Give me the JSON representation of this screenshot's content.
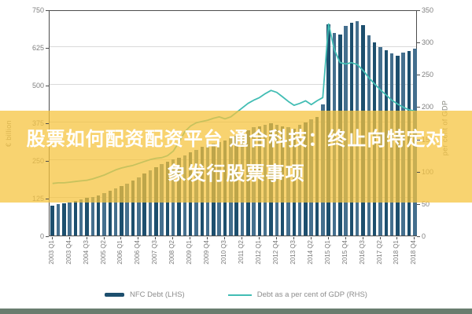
{
  "overlay": {
    "line1": "股票如何配资配资平台 通合科技：终止向特定对",
    "line2": "象发行股票事项",
    "band_color": "rgba(246,196,62,0.74)",
    "text_color": "#ffffff"
  },
  "footer_strip": {
    "color": "#6a7d6f"
  },
  "chart_data": {
    "type": "bar",
    "subtype": "bar+line combo, dual axis",
    "categories": [
      "2003 Q1",
      "2003 Q2",
      "2003 Q3",
      "2003 Q4",
      "2004 Q1",
      "2004 Q2",
      "2004 Q3",
      "2004 Q4",
      "2005 Q1",
      "2005 Q2",
      "2005 Q3",
      "2005 Q4",
      "2006 Q1",
      "2006 Q2",
      "2006 Q3",
      "2006 Q4",
      "2007 Q1",
      "2007 Q2",
      "2007 Q3",
      "2007 Q4",
      "2008 Q1",
      "2008 Q2",
      "2008 Q3",
      "2008 Q4",
      "2009 Q1",
      "2009 Q2",
      "2009 Q3",
      "2009 Q4",
      "2010 Q1",
      "2010 Q2",
      "2010 Q3",
      "2010 Q4",
      "2011 Q1",
      "2011 Q2",
      "2011 Q3",
      "2011 Q4",
      "2012 Q1",
      "2012 Q2",
      "2012 Q3",
      "2012 Q4",
      "2013 Q1",
      "2013 Q2",
      "2013 Q3",
      "2013 Q4",
      "2014 Q1",
      "2014 Q2",
      "2014 Q3",
      "2014 Q4",
      "2015 Q1",
      "2015 Q2",
      "2015 Q3",
      "2015 Q4",
      "2016 Q1",
      "2016 Q2",
      "2016 Q3",
      "2016 Q4",
      "2017 Q1",
      "2017 Q2",
      "2017 Q3",
      "2017 Q4",
      "2018 Q1",
      "2018 Q2",
      "2018 Q3",
      "2018 Q4"
    ],
    "x_tick_labels": [
      "2003 Q1",
      "2003 Q4",
      "2004 Q3",
      "2005 Q2",
      "2006 Q1",
      "2006 Q4",
      "2007 Q3",
      "2008 Q2",
      "2009 Q1",
      "2009 Q4",
      "2010 Q3",
      "2011 Q2",
      "2012 Q1",
      "2012 Q4",
      "2013 Q3",
      "2014 Q2",
      "2015 Q1",
      "2015 Q4",
      "2016 Q3",
      "2017 Q2",
      "2018 Q1",
      "2018 Q4"
    ],
    "x_tick_step": 3,
    "series": [
      {
        "name": "NFC Debt (LHS)",
        "render": "bar",
        "axis": "left",
        "color": "#1d4f6e",
        "color_alt": "#446f8e",
        "values": [
          100,
          103,
          106,
          110,
          114,
          119,
          124,
          129,
          134,
          141,
          148,
          156,
          164,
          173,
          183,
          194,
          205,
          216,
          227,
          237,
          245,
          252,
          259,
          266,
          275,
          285,
          294,
          302,
          306,
          310,
          316,
          323,
          332,
          341,
          350,
          359,
          361,
          367,
          372,
          368,
          362,
          359,
          354,
          367,
          374,
          385,
          393,
          435,
          700,
          672,
          666,
          695,
          705,
          710,
          698,
          665,
          640,
          625,
          615,
          605,
          596,
          607,
          613,
          620
        ]
      },
      {
        "name": "Debt as a per cent of GDP (RHS)",
        "render": "line",
        "axis": "right",
        "color": "#42bdb4",
        "values": [
          83,
          84,
          84,
          85,
          86,
          87,
          88,
          90,
          93,
          96,
          100,
          104,
          107,
          109,
          111,
          114,
          117,
          120,
          122,
          123,
          126,
          133,
          147,
          163,
          172,
          177,
          179,
          181,
          184,
          186,
          183,
          186,
          193,
          200,
          207,
          212,
          216,
          222,
          227,
          224,
          217,
          210,
          204,
          207,
          211,
          205,
          211,
          216,
          330,
          290,
          270,
          268,
          270,
          267,
          258,
          247,
          237,
          228,
          220,
          212,
          206,
          201,
          197,
          195
        ]
      }
    ],
    "left_axis": {
      "title": "€ billion",
      "min": 0,
      "max": 750,
      "ticks": [
        0,
        125,
        250,
        375,
        500,
        625,
        750
      ]
    },
    "right_axis": {
      "title": "per cent of GDP",
      "min": 0,
      "max": 350,
      "ticks": [
        0,
        50,
        100,
        150,
        200,
        250,
        300,
        350
      ]
    },
    "legend": [
      "NFC Debt (LHS)",
      "Debt as a per cent of GDP (RHS)"
    ],
    "grid": true,
    "legend_position": "bottom-center",
    "title": ""
  }
}
